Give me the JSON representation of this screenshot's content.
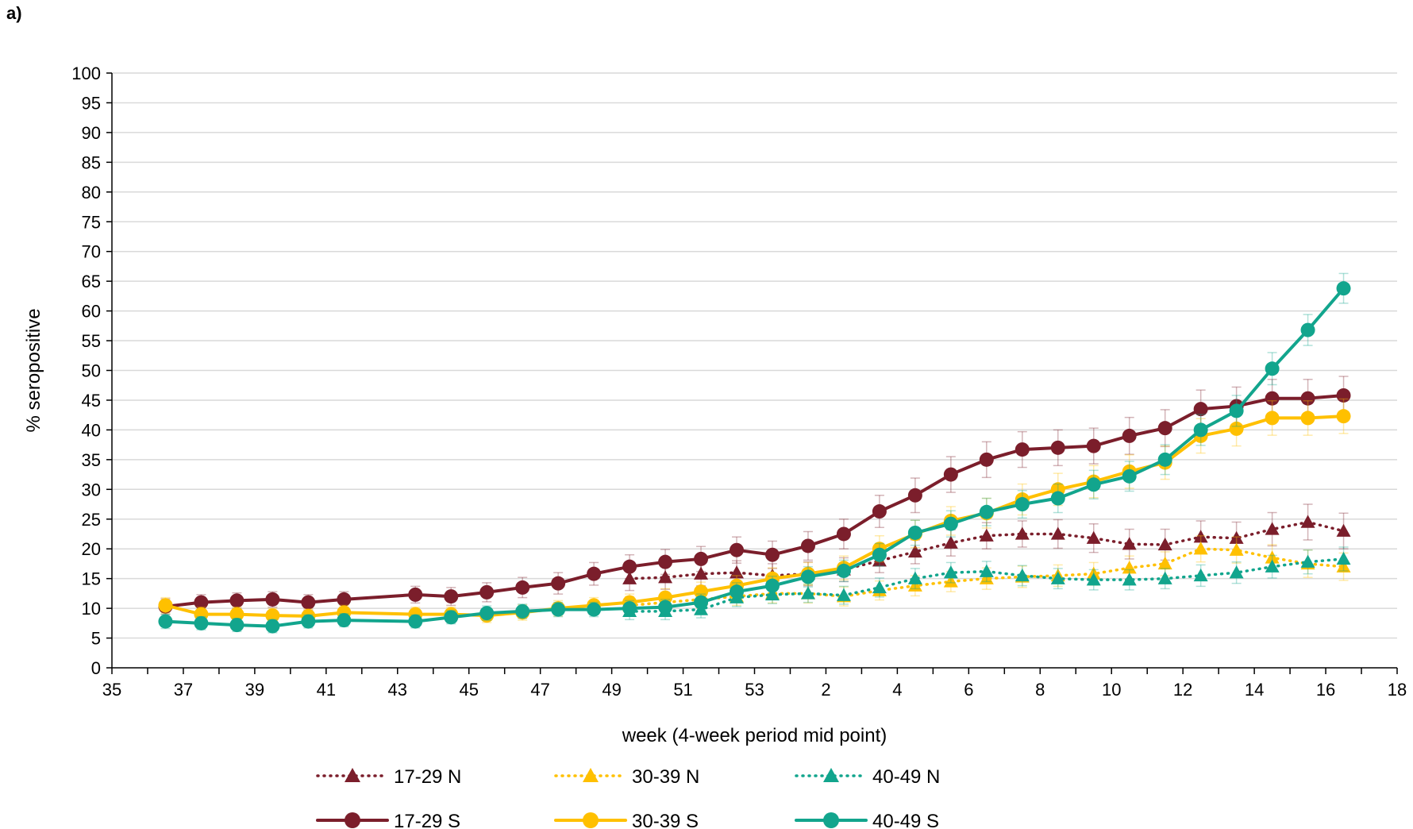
{
  "panel_label": "a)",
  "chart_data": {
    "type": "line",
    "xlabel": "week (4-week period mid point)",
    "ylabel": "% seropositive",
    "x_tick_labels": [
      "35",
      "37",
      "39",
      "41",
      "43",
      "45",
      "47",
      "49",
      "51",
      "53",
      "2",
      "4",
      "6",
      "8",
      "10",
      "12",
      "14",
      "16",
      "18"
    ],
    "x_axis_note": "weeks 35-53 of 2020 followed by weeks 1-18 of 2021, continuous axis",
    "ylim": [
      0,
      100
    ],
    "y_ticks": [
      0,
      5,
      10,
      15,
      20,
      25,
      30,
      35,
      40,
      45,
      50,
      55,
      60,
      65,
      70,
      75,
      80,
      85,
      90,
      95,
      100
    ],
    "grid": "horizontal",
    "legend_position": "bottom",
    "series": [
      {
        "name": "17-29 N",
        "color": "#7B1E2B",
        "line": "dotted",
        "marker": "triangle",
        "x": [
          "49.5",
          "50.5",
          "51.5",
          "52.5",
          "53.5",
          "1.5",
          "2.5",
          "3.5",
          "4.5",
          "5.5",
          "6.5",
          "7.5",
          "8.5",
          "9.5",
          "10.5",
          "11.5",
          "12.5",
          "13.5",
          "14.5",
          "15.5",
          "16.5"
        ],
        "y": [
          15.0,
          15.2,
          15.8,
          16.0,
          15.5,
          15.8,
          16.5,
          18.0,
          19.5,
          21.0,
          22.2,
          22.5,
          22.5,
          21.8,
          20.8,
          20.7,
          22.0,
          21.8,
          23.3,
          24.5,
          23.0
        ],
        "err": [
          2.0,
          2.0,
          2.0,
          2.0,
          2.0,
          2.0,
          2.0,
          2.0,
          2.0,
          2.2,
          2.2,
          2.2,
          2.4,
          2.4,
          2.5,
          2.6,
          2.7,
          2.7,
          2.8,
          3.0,
          3.0
        ]
      },
      {
        "name": "30-39 N",
        "color": "#FFC000",
        "line": "dotted",
        "marker": "triangle",
        "x": [
          "49.5",
          "50.5",
          "51.5",
          "52.5",
          "53.5",
          "1.5",
          "2.5",
          "3.5",
          "4.5",
          "5.5",
          "6.5",
          "7.5",
          "8.5",
          "9.5",
          "10.5",
          "11.5",
          "12.5",
          "13.5",
          "14.5",
          "15.5",
          "16.5"
        ],
        "y": [
          10.5,
          11.0,
          11.5,
          12.0,
          12.5,
          12.5,
          12.0,
          13.0,
          13.8,
          14.5,
          15.0,
          15.3,
          15.5,
          15.8,
          16.8,
          17.5,
          20.0,
          19.8,
          18.5,
          17.5,
          17.0
        ],
        "err": [
          1.5,
          1.5,
          1.5,
          1.5,
          1.6,
          1.6,
          1.6,
          1.6,
          1.7,
          1.7,
          1.8,
          1.8,
          1.8,
          1.9,
          2.0,
          2.0,
          2.2,
          2.2,
          2.2,
          2.3,
          2.3
        ]
      },
      {
        "name": "40-49 N",
        "color": "#12A58D",
        "line": "dotted",
        "marker": "triangle",
        "x": [
          "49.5",
          "50.5",
          "51.5",
          "52.5",
          "53.5",
          "1.5",
          "2.5",
          "3.5",
          "4.5",
          "5.5",
          "6.5",
          "7.5",
          "8.5",
          "9.5",
          "10.5",
          "11.5",
          "12.5",
          "13.5",
          "14.5",
          "15.5",
          "16.5"
        ],
        "y": [
          9.5,
          9.5,
          9.8,
          11.8,
          12.3,
          12.5,
          12.2,
          13.5,
          15.0,
          16.0,
          16.2,
          15.5,
          15.0,
          14.8,
          14.8,
          15.0,
          15.5,
          16.0,
          17.0,
          17.8,
          18.3
        ],
        "err": [
          1.4,
          1.4,
          1.4,
          1.5,
          1.5,
          1.5,
          1.5,
          1.6,
          1.7,
          1.7,
          1.7,
          1.7,
          1.7,
          1.7,
          1.7,
          1.7,
          1.8,
          1.8,
          1.9,
          2.0,
          2.0
        ]
      },
      {
        "name": "17-29 S",
        "color": "#7B1E2B",
        "line": "solid",
        "marker": "circle",
        "x": [
          "36.5",
          "37.5",
          "38.5",
          "39.5",
          "40.5",
          "41.5",
          "43.5",
          "44.5",
          "45.5",
          "46.5",
          "47.5",
          "48.5",
          "49.5",
          "50.5",
          "51.5",
          "52.5",
          "53.5",
          "1.5",
          "2.5",
          "3.5",
          "4.5",
          "5.5",
          "6.5",
          "7.5",
          "8.5",
          "9.5",
          "10.5",
          "11.5",
          "12.5",
          "13.5",
          "14.5",
          "15.5",
          "16.5"
        ],
        "y": [
          10.3,
          11.0,
          11.3,
          11.5,
          11.0,
          11.5,
          12.3,
          12.0,
          12.7,
          13.5,
          14.2,
          15.8,
          17.0,
          17.8,
          18.3,
          19.8,
          19.0,
          20.5,
          22.5,
          26.3,
          29.0,
          32.5,
          35.0,
          36.7,
          37.0,
          37.3,
          39.0,
          40.3,
          43.5,
          44.0,
          45.3,
          45.3,
          45.8
        ],
        "err": [
          1.3,
          1.3,
          1.3,
          1.3,
          1.3,
          1.3,
          1.4,
          1.5,
          1.6,
          1.7,
          1.8,
          1.9,
          2.0,
          2.1,
          2.1,
          2.2,
          2.3,
          2.4,
          2.5,
          2.7,
          2.9,
          3.0,
          3.0,
          3.0,
          3.0,
          3.0,
          3.1,
          3.1,
          3.2,
          3.2,
          3.2,
          3.2,
          3.2
        ]
      },
      {
        "name": "30-39 S",
        "color": "#FFC000",
        "line": "solid",
        "marker": "circle",
        "x": [
          "36.5",
          "37.5",
          "38.5",
          "39.5",
          "40.5",
          "41.5",
          "43.5",
          "44.5",
          "45.5",
          "46.5",
          "47.5",
          "48.5",
          "49.5",
          "50.5",
          "51.5",
          "52.5",
          "53.5",
          "1.5",
          "2.5",
          "3.5",
          "4.5",
          "5.5",
          "6.5",
          "7.5",
          "8.5",
          "9.5",
          "10.5",
          "11.5",
          "12.5",
          "13.5",
          "14.5",
          "15.5",
          "16.5"
        ],
        "y": [
          10.5,
          9.0,
          9.0,
          8.8,
          8.7,
          9.3,
          9.0,
          9.0,
          8.8,
          9.3,
          10.0,
          10.5,
          11.0,
          11.8,
          12.8,
          13.8,
          15.0,
          15.8,
          16.8,
          20.0,
          22.5,
          24.7,
          26.0,
          28.3,
          30.0,
          31.3,
          33.0,
          34.5,
          39.0,
          40.2,
          42.0,
          42.0,
          42.3
        ],
        "err": [
          1.3,
          1.2,
          1.2,
          1.2,
          1.2,
          1.2,
          1.2,
          1.2,
          1.2,
          1.3,
          1.3,
          1.3,
          1.4,
          1.5,
          1.6,
          1.7,
          1.8,
          1.9,
          2.0,
          2.2,
          2.3,
          2.4,
          2.5,
          2.6,
          2.7,
          2.7,
          2.8,
          2.8,
          2.9,
          2.9,
          2.9,
          2.9,
          2.9
        ]
      },
      {
        "name": "40-49 S",
        "color": "#12A58D",
        "line": "solid",
        "marker": "circle",
        "x": [
          "36.5",
          "37.5",
          "38.5",
          "39.5",
          "40.5",
          "41.5",
          "43.5",
          "44.5",
          "45.5",
          "46.5",
          "47.5",
          "48.5",
          "49.5",
          "50.5",
          "51.5",
          "52.5",
          "53.5",
          "1.5",
          "2.5",
          "3.5",
          "4.5",
          "5.5",
          "6.5",
          "7.5",
          "8.5",
          "9.5",
          "10.5",
          "11.5",
          "12.5",
          "13.5",
          "14.5",
          "15.5",
          "16.5"
        ],
        "y": [
          7.8,
          7.5,
          7.2,
          7.0,
          7.8,
          8.0,
          7.8,
          8.5,
          9.2,
          9.5,
          9.8,
          9.8,
          10.0,
          10.2,
          11.0,
          12.8,
          13.8,
          15.3,
          16.3,
          19.0,
          22.7,
          24.2,
          26.2,
          27.5,
          28.5,
          30.8,
          32.2,
          35.0,
          40.0,
          43.2,
          50.3,
          56.8,
          63.8
        ],
        "err": [
          1.2,
          1.1,
          1.1,
          1.1,
          1.1,
          1.1,
          1.1,
          1.1,
          1.2,
          1.2,
          1.2,
          1.2,
          1.3,
          1.3,
          1.4,
          1.5,
          1.6,
          1.7,
          1.8,
          1.9,
          2.1,
          2.2,
          2.3,
          2.3,
          2.4,
          2.4,
          2.5,
          2.5,
          2.6,
          2.6,
          2.7,
          2.6,
          2.5
        ]
      }
    ]
  }
}
